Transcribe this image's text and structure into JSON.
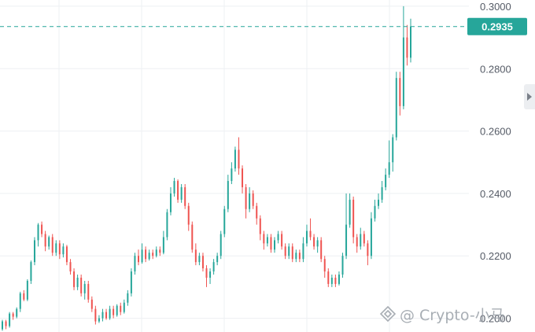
{
  "chart_data": {
    "type": "candlestick",
    "y_axis_side": "right",
    "ylim": [
      0.1956,
      0.302
    ],
    "y_ticks": [
      "0.3000",
      "0.2800",
      "0.2600",
      "0.2400",
      "0.2200",
      "0.2000"
    ],
    "grid": true,
    "current_price": "0.2935",
    "current_price_value": 0.2935,
    "colors": {
      "up": "#26a69a",
      "down": "#ef5350",
      "price_line": "#26a69a",
      "grid": "#eef0f3"
    },
    "candles": [
      [
        0.1965,
        0.199,
        0.196,
        0.1995
      ],
      [
        0.199,
        0.1975,
        0.1965,
        0.1995
      ],
      [
        0.1975,
        0.2015,
        0.197,
        0.202
      ],
      [
        0.2015,
        0.2005,
        0.1995,
        0.202
      ],
      [
        0.2005,
        0.203,
        0.2,
        0.2035
      ],
      [
        0.203,
        0.208,
        0.202,
        0.2085
      ],
      [
        0.208,
        0.206,
        0.2055,
        0.209
      ],
      [
        0.206,
        0.212,
        0.2055,
        0.2125
      ],
      [
        0.212,
        0.218,
        0.211,
        0.2185
      ],
      [
        0.218,
        0.225,
        0.217,
        0.226
      ],
      [
        0.225,
        0.23,
        0.223,
        0.2305
      ],
      [
        0.23,
        0.227,
        0.226,
        0.231
      ],
      [
        0.227,
        0.223,
        0.2215,
        0.228
      ],
      [
        0.223,
        0.226,
        0.222,
        0.2265
      ],
      [
        0.226,
        0.221,
        0.22,
        0.227
      ],
      [
        0.221,
        0.224,
        0.22,
        0.225
      ],
      [
        0.224,
        0.2205,
        0.219,
        0.225
      ],
      [
        0.2205,
        0.223,
        0.2195,
        0.224
      ],
      [
        0.223,
        0.218,
        0.217,
        0.2235
      ],
      [
        0.218,
        0.215,
        0.214,
        0.219
      ],
      [
        0.215,
        0.21,
        0.209,
        0.216
      ],
      [
        0.21,
        0.213,
        0.209,
        0.214
      ],
      [
        0.213,
        0.208,
        0.207,
        0.214
      ],
      [
        0.208,
        0.211,
        0.206,
        0.212
      ],
      [
        0.211,
        0.206,
        0.205,
        0.212
      ],
      [
        0.206,
        0.203,
        0.202,
        0.207
      ],
      [
        0.203,
        0.199,
        0.198,
        0.204
      ],
      [
        0.199,
        0.2,
        0.1985,
        0.201
      ],
      [
        0.2,
        0.202,
        0.199,
        0.203
      ],
      [
        0.202,
        0.2,
        0.1995,
        0.203
      ],
      [
        0.2,
        0.203,
        0.1995,
        0.204
      ],
      [
        0.203,
        0.201,
        0.2,
        0.204
      ],
      [
        0.201,
        0.204,
        0.2005,
        0.2045
      ],
      [
        0.204,
        0.202,
        0.201,
        0.205
      ],
      [
        0.202,
        0.205,
        0.2015,
        0.206
      ],
      [
        0.205,
        0.208,
        0.204,
        0.209
      ],
      [
        0.208,
        0.215,
        0.207,
        0.216
      ],
      [
        0.215,
        0.22,
        0.214,
        0.221
      ],
      [
        0.22,
        0.218,
        0.217,
        0.222
      ],
      [
        0.218,
        0.222,
        0.2175,
        0.224
      ],
      [
        0.222,
        0.219,
        0.218,
        0.223
      ],
      [
        0.219,
        0.221,
        0.2185,
        0.222
      ],
      [
        0.221,
        0.22,
        0.219,
        0.222
      ],
      [
        0.22,
        0.222,
        0.2195,
        0.223
      ],
      [
        0.222,
        0.221,
        0.22,
        0.223
      ],
      [
        0.221,
        0.226,
        0.2205,
        0.228
      ],
      [
        0.226,
        0.234,
        0.225,
        0.235
      ],
      [
        0.234,
        0.24,
        0.233,
        0.242
      ],
      [
        0.24,
        0.244,
        0.239,
        0.245
      ],
      [
        0.244,
        0.238,
        0.237,
        0.2445
      ],
      [
        0.238,
        0.242,
        0.237,
        0.243
      ],
      [
        0.242,
        0.236,
        0.235,
        0.243
      ],
      [
        0.236,
        0.23,
        0.228,
        0.237
      ],
      [
        0.23,
        0.222,
        0.221,
        0.231
      ],
      [
        0.222,
        0.218,
        0.217,
        0.224
      ],
      [
        0.218,
        0.22,
        0.217,
        0.221
      ],
      [
        0.22,
        0.216,
        0.215,
        0.221
      ],
      [
        0.216,
        0.213,
        0.21,
        0.217
      ],
      [
        0.213,
        0.215,
        0.211,
        0.216
      ],
      [
        0.215,
        0.218,
        0.214,
        0.219
      ],
      [
        0.218,
        0.22,
        0.217,
        0.221
      ],
      [
        0.22,
        0.227,
        0.219,
        0.228
      ],
      [
        0.227,
        0.235,
        0.226,
        0.236
      ],
      [
        0.235,
        0.244,
        0.234,
        0.246
      ],
      [
        0.244,
        0.248,
        0.243,
        0.25
      ],
      [
        0.248,
        0.254,
        0.247,
        0.255
      ],
      [
        0.254,
        0.248,
        0.246,
        0.258
      ],
      [
        0.248,
        0.242,
        0.24,
        0.249
      ],
      [
        0.242,
        0.235,
        0.232,
        0.243
      ],
      [
        0.235,
        0.24,
        0.234,
        0.242
      ],
      [
        0.24,
        0.236,
        0.235,
        0.241
      ],
      [
        0.236,
        0.232,
        0.23,
        0.237
      ],
      [
        0.232,
        0.227,
        0.225,
        0.233
      ],
      [
        0.227,
        0.224,
        0.222,
        0.228
      ],
      [
        0.224,
        0.226,
        0.223,
        0.227
      ],
      [
        0.226,
        0.222,
        0.221,
        0.227
      ],
      [
        0.222,
        0.225,
        0.221,
        0.226
      ],
      [
        0.225,
        0.227,
        0.224,
        0.228
      ],
      [
        0.227,
        0.223,
        0.222,
        0.228
      ],
      [
        0.223,
        0.22,
        0.219,
        0.224
      ],
      [
        0.22,
        0.223,
        0.219,
        0.224
      ],
      [
        0.223,
        0.219,
        0.218,
        0.224
      ],
      [
        0.219,
        0.221,
        0.218,
        0.222
      ],
      [
        0.221,
        0.219,
        0.218,
        0.222
      ],
      [
        0.219,
        0.224,
        0.218,
        0.226
      ],
      [
        0.224,
        0.228,
        0.223,
        0.23
      ],
      [
        0.228,
        0.226,
        0.225,
        0.232
      ],
      [
        0.226,
        0.223,
        0.222,
        0.227
      ],
      [
        0.223,
        0.225,
        0.221,
        0.226
      ],
      [
        0.225,
        0.219,
        0.218,
        0.226
      ],
      [
        0.219,
        0.215,
        0.213,
        0.22
      ],
      [
        0.215,
        0.211,
        0.21,
        0.216
      ],
      [
        0.211,
        0.213,
        0.21,
        0.214
      ],
      [
        0.213,
        0.211,
        0.21,
        0.214
      ],
      [
        0.211,
        0.214,
        0.2105,
        0.215
      ],
      [
        0.214,
        0.22,
        0.213,
        0.221
      ],
      [
        0.22,
        0.23,
        0.219,
        0.24
      ],
      [
        0.23,
        0.238,
        0.229,
        0.24
      ],
      [
        0.238,
        0.226,
        0.224,
        0.239
      ],
      [
        0.226,
        0.223,
        0.221,
        0.227
      ],
      [
        0.223,
        0.227,
        0.222,
        0.229
      ],
      [
        0.227,
        0.224,
        0.223,
        0.228
      ],
      [
        0.224,
        0.22,
        0.217,
        0.225
      ],
      [
        0.22,
        0.232,
        0.219,
        0.234
      ],
      [
        0.232,
        0.236,
        0.231,
        0.238
      ],
      [
        0.236,
        0.238,
        0.235,
        0.24
      ],
      [
        0.238,
        0.242,
        0.237,
        0.244
      ],
      [
        0.242,
        0.246,
        0.241,
        0.248
      ],
      [
        0.246,
        0.25,
        0.245,
        0.257
      ],
      [
        0.25,
        0.258,
        0.247,
        0.259
      ],
      [
        0.258,
        0.277,
        0.257,
        0.279
      ],
      [
        0.277,
        0.268,
        0.265,
        0.279
      ],
      [
        0.268,
        0.29,
        0.267,
        0.3
      ],
      [
        0.29,
        0.2835,
        0.281,
        0.294
      ],
      [
        0.2835,
        0.2935,
        0.282,
        0.296
      ]
    ]
  },
  "watermark": {
    "text": "@ Crypto-小马"
  },
  "icons": {
    "watermark_logo": "binance-square-diamond-icon",
    "scroll_handle": "chevron-right-icon"
  }
}
